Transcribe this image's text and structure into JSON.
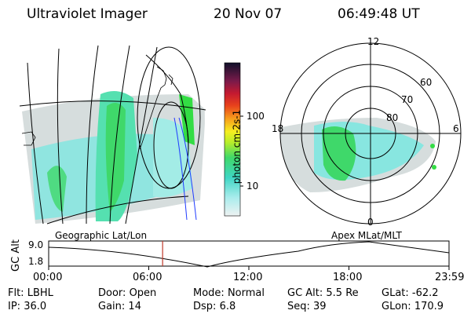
{
  "header": {
    "title": "Ultraviolet Imager",
    "date": "20 Nov 07",
    "time": "06:49:48 UT"
  },
  "colorbar": {
    "label": "photon cm-2s-1",
    "ticks": [
      "100",
      "10"
    ]
  },
  "polar_plot": {
    "mlt_labels": [
      "12",
      "18",
      "6",
      "0"
    ],
    "lat_labels": [
      "60",
      "70",
      "80"
    ]
  },
  "panel_labels": {
    "left": "Geographic Lat/Lon",
    "right": "Apex MLat/MLT"
  },
  "timeline": {
    "axis_label": "GC Alt",
    "y_ticks": [
      "9.0",
      "1.8"
    ],
    "x_ticks": [
      "00:00",
      "06:00",
      "12:00",
      "18:00",
      "23:59"
    ],
    "marker_fraction": 0.2846
  },
  "footer": {
    "row1": [
      {
        "label": "Flt:",
        "value": "LBHL"
      },
      {
        "label": "Door:",
        "value": "Open"
      },
      {
        "label": "Mode:",
        "value": "Normal"
      },
      {
        "label": "GC Alt:",
        "value": "5.5 Re"
      },
      {
        "label": "GLat:",
        "value": "-62.2"
      }
    ],
    "row2": [
      {
        "label": "IP:",
        "value": "36.0"
      },
      {
        "label": "Gain:",
        "value": "14"
      },
      {
        "label": "Dsp:",
        "value": "6.8"
      },
      {
        "label": "Seq:",
        "value": "39"
      },
      {
        "label": "GLon:",
        "value": "170.9"
      }
    ]
  },
  "colors": {
    "marker": "#c0392b",
    "aurora_green": "#33dd44",
    "aurora_cyan": "#44ddcc",
    "background_gray": "#dde2e2"
  }
}
